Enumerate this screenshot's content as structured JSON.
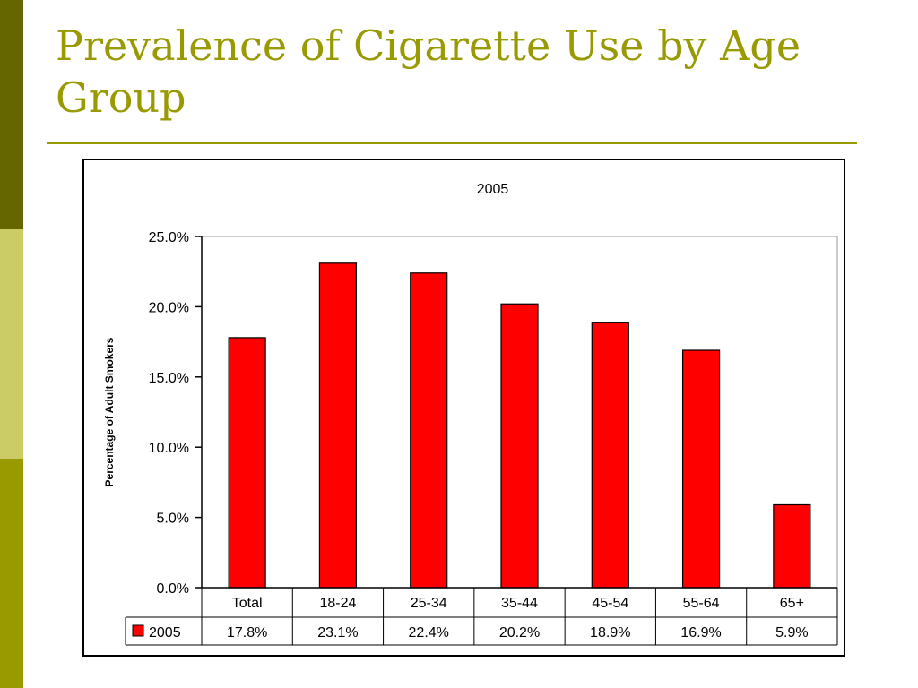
{
  "slide": {
    "title": "Prevalence of Cigarette Use by Age Group"
  },
  "colors": {
    "accent": "#999900",
    "strip_top": "#666600",
    "strip_mid": "#cccc66",
    "strip_bottom": "#999900",
    "bar": "#ff0000"
  },
  "chart_data": {
    "type": "bar",
    "title": "2005",
    "xlabel": "",
    "ylabel": "Percentage of Adult Smokers",
    "categories": [
      "Total",
      "18-24",
      "25-34",
      "35-44",
      "45-54",
      "55-64",
      "65+"
    ],
    "series": [
      {
        "name": "2005",
        "values": [
          17.8,
          23.1,
          22.4,
          20.2,
          18.9,
          16.9,
          5.9
        ]
      }
    ],
    "data_labels": [
      "17.8%",
      "23.1%",
      "22.4%",
      "20.2%",
      "18.9%",
      "16.9%",
      "5.9%"
    ],
    "ylim": [
      0,
      25
    ],
    "yticks": [
      "0.0%",
      "5.0%",
      "10.0%",
      "15.0%",
      "20.0%",
      "25.0%"
    ],
    "grid": false,
    "legend": "data-table",
    "color": "#ff0000"
  }
}
